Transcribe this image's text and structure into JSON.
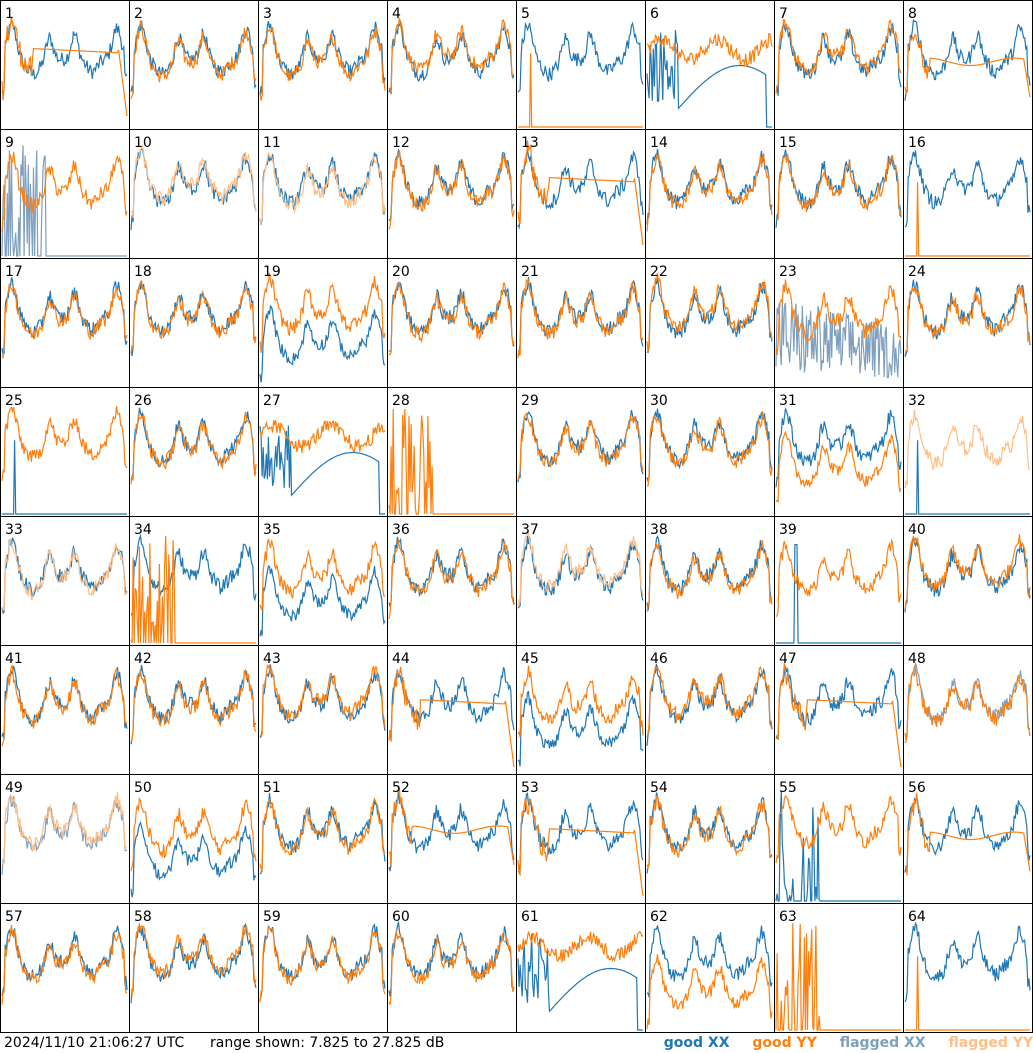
{
  "chart_data": {
    "type": "line",
    "layout": "8x8 small multiples",
    "panel_labels": [
      "1",
      "2",
      "3",
      "4",
      "5",
      "6",
      "7",
      "8",
      "9",
      "10",
      "11",
      "12",
      "13",
      "14",
      "15",
      "16",
      "17",
      "18",
      "19",
      "20",
      "21",
      "22",
      "23",
      "24",
      "25",
      "26",
      "27",
      "28",
      "29",
      "30",
      "31",
      "32",
      "33",
      "34",
      "35",
      "36",
      "37",
      "38",
      "39",
      "40",
      "41",
      "42",
      "43",
      "44",
      "45",
      "46",
      "47",
      "48",
      "49",
      "50",
      "51",
      "52",
      "53",
      "54",
      "55",
      "56",
      "57",
      "58",
      "59",
      "60",
      "61",
      "62",
      "63",
      "64"
    ],
    "ylim_db": [
      7.825,
      27.825
    ],
    "grid": false,
    "legend_placement": "bottom-right",
    "series": [
      {
        "name": "good XX",
        "color": "#1f77b4"
      },
      {
        "name": "good YY",
        "color": "#ff7f0e"
      },
      {
        "name": "flagged XX",
        "color": "#7f9fbf"
      },
      {
        "name": "flagged YY",
        "color": "#ffbf87"
      }
    ],
    "panels": {
      "1": {
        "xx": "good",
        "yy": "rolloff"
      },
      "2": {
        "xx": "good",
        "yy": "good"
      },
      "3": {
        "xx": "good",
        "yy": "good"
      },
      "4": {
        "xx": "good",
        "yy": "good"
      },
      "5": {
        "xx": "good",
        "yy": "dead"
      },
      "6": {
        "xx": "bowl",
        "yy": "high"
      },
      "7": {
        "xx": "good",
        "yy": "good"
      },
      "8": {
        "xx": "good",
        "yy": "flat"
      },
      "9": {
        "xx": "spiky_flagged",
        "yy": "good"
      },
      "10": {
        "xx": "good",
        "yy": "flagged"
      },
      "11": {
        "xx": "good",
        "yy": "flagged"
      },
      "12": {
        "xx": "good",
        "yy": "good"
      },
      "13": {
        "xx": "good",
        "yy": "rolloff"
      },
      "14": {
        "xx": "good",
        "yy": "good"
      },
      "15": {
        "xx": "good",
        "yy": "good"
      },
      "16": {
        "xx": "good",
        "yy": "dead"
      },
      "17": {
        "xx": "good",
        "yy": "good"
      },
      "18": {
        "xx": "good",
        "yy": "good"
      },
      "19": {
        "xx": "low",
        "yy": "good"
      },
      "20": {
        "xx": "good",
        "yy": "good"
      },
      "21": {
        "xx": "good",
        "yy": "good"
      },
      "22": {
        "xx": "good",
        "yy": "good"
      },
      "23": {
        "xx": "noisy_flagged",
        "yy": "good"
      },
      "24": {
        "xx": "good",
        "yy": "good"
      },
      "25": {
        "xx": "dead",
        "yy": "good"
      },
      "26": {
        "xx": "good",
        "yy": "good"
      },
      "27": {
        "xx": "bowl",
        "yy": "high"
      },
      "28": {
        "xx": "none",
        "yy": "spiky"
      },
      "29": {
        "xx": "good",
        "yy": "good"
      },
      "30": {
        "xx": "good",
        "yy": "good"
      },
      "31": {
        "xx": "good",
        "yy": "low"
      },
      "32": {
        "xx": "dead",
        "yy": "flagged"
      },
      "33": {
        "xx": "good",
        "yy": "flagged"
      },
      "34": {
        "xx": "good",
        "yy": "spiky"
      },
      "35": {
        "xx": "low",
        "yy": "good"
      },
      "36": {
        "xx": "good",
        "yy": "good"
      },
      "37": {
        "xx": "good",
        "yy": "flagged"
      },
      "38": {
        "xx": "good",
        "yy": "good"
      },
      "39": {
        "xx": "dead_spike",
        "yy": "good"
      },
      "40": {
        "xx": "good",
        "yy": "good"
      },
      "41": {
        "xx": "good",
        "yy": "good"
      },
      "42": {
        "xx": "good",
        "yy": "good"
      },
      "43": {
        "xx": "good",
        "yy": "good"
      },
      "44": {
        "xx": "good",
        "yy": "rolloff"
      },
      "45": {
        "xx": "low",
        "yy": "good"
      },
      "46": {
        "xx": "good",
        "yy": "good"
      },
      "47": {
        "xx": "good",
        "yy": "rolloff"
      },
      "48": {
        "xx": "flagged",
        "yy": "good"
      },
      "49": {
        "xx": "flagged",
        "yy": "flagged"
      },
      "50": {
        "xx": "low",
        "yy": "good"
      },
      "51": {
        "xx": "good",
        "yy": "good"
      },
      "52": {
        "xx": "good",
        "yy": "flat"
      },
      "53": {
        "xx": "good",
        "yy": "rolloff"
      },
      "54": {
        "xx": "good",
        "yy": "good"
      },
      "55": {
        "xx": "spiky",
        "yy": "good"
      },
      "56": {
        "xx": "good",
        "yy": "flat"
      },
      "57": {
        "xx": "good",
        "yy": "good"
      },
      "58": {
        "xx": "good",
        "yy": "good"
      },
      "59": {
        "xx": "good",
        "yy": "good"
      },
      "60": {
        "xx": "good",
        "yy": "good"
      },
      "61": {
        "xx": "bowl",
        "yy": "high"
      },
      "62": {
        "xx": "good",
        "yy": "low"
      },
      "63": {
        "xx": "none",
        "yy": "spiky"
      },
      "64": {
        "xx": "good",
        "yy": "dead"
      }
    }
  },
  "footer": {
    "timestamp": "2024/11/10 21:06:27 UTC",
    "range_text": "range shown: 7.825 to 27.825 dB",
    "legend": [
      {
        "label": "good XX",
        "color": "#1f77b4"
      },
      {
        "label": "good YY",
        "color": "#ff7f0e"
      },
      {
        "label": "flagged XX",
        "color": "#7f9fbf"
      },
      {
        "label": "flagged YY",
        "color": "#ffbf87"
      }
    ]
  }
}
